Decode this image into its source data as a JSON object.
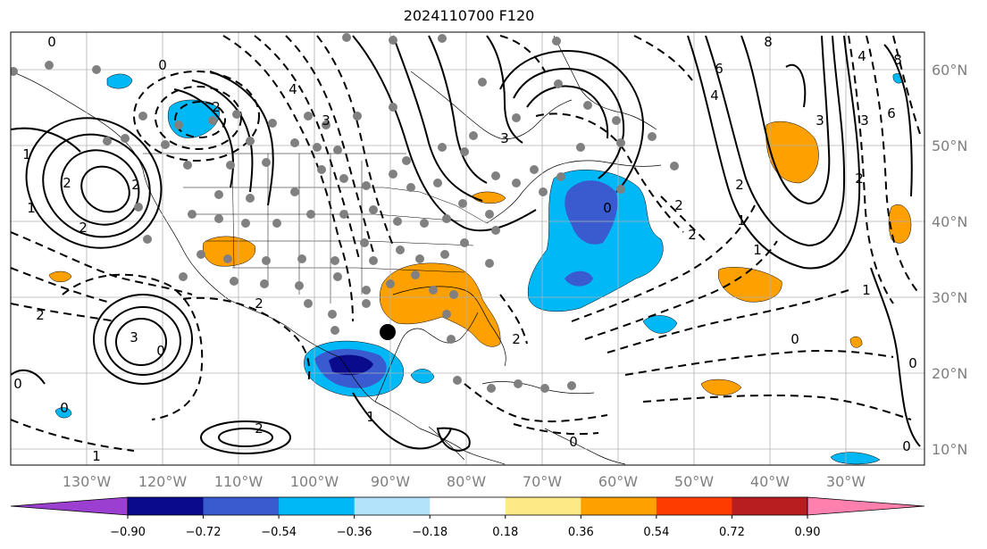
{
  "title": "2024110700 F120",
  "map": {
    "lon_labels": [
      "130°W",
      "120°W",
      "110°W",
      "100°W",
      "90°W",
      "80°W",
      "70°W",
      "60°W",
      "50°W",
      "40°W",
      "30°W"
    ],
    "lat_labels": [
      "60°N",
      "50°N",
      "40°N",
      "30°N",
      "20°N",
      "10°N"
    ],
    "contour_labels": [
      "0",
      "0",
      "2",
      "4",
      "3",
      "2",
      "2",
      "1",
      "2",
      "1",
      "3",
      "2",
      "2",
      "0",
      "0",
      "3",
      "4",
      "6",
      "8",
      "4",
      "3",
      "6",
      "8",
      "2",
      "3",
      "2",
      "1",
      "1",
      "0",
      "0",
      "0",
      "1",
      "1",
      "2",
      "2",
      "0",
      "2",
      "0",
      "1",
      "0",
      "2"
    ]
  },
  "colorbar": {
    "ticks": [
      "−0.90",
      "−0.72",
      "−0.54",
      "−0.36",
      "−0.18",
      "0.18",
      "0.36",
      "0.54",
      "0.72",
      "0.90"
    ],
    "colors": [
      "#9b3fd0",
      "#0a0a8c",
      "#3a5bd0",
      "#00b8f5",
      "#b3e3fb",
      "#ffffff",
      "#fde985",
      "#fda000",
      "#fe3c00",
      "#b81e20",
      "#ff80ad"
    ]
  }
}
